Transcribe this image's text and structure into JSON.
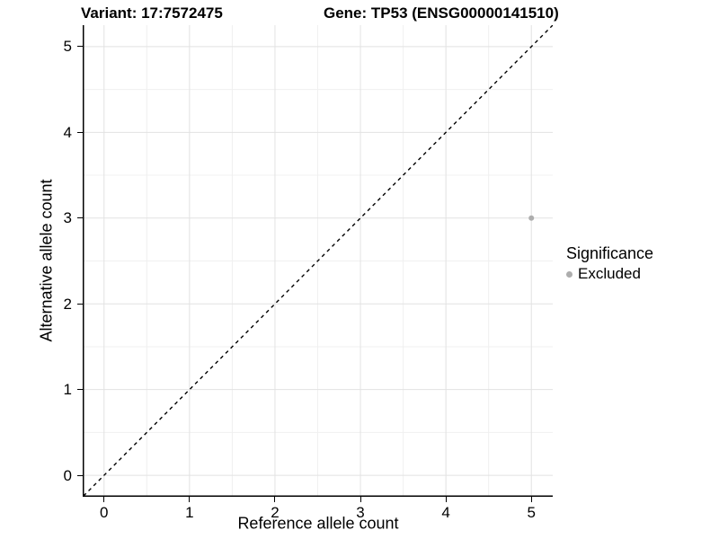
{
  "chart_data": {
    "type": "scatter",
    "titles": {
      "left": "Variant: 17:7572475",
      "right": "Gene: TP53 (ENSG00000141510)"
    },
    "xlabel": "Reference allele count",
    "ylabel": "Alternative allele count",
    "xlim": [
      -0.25,
      5.25
    ],
    "ylim": [
      -0.25,
      5.25
    ],
    "x_ticks": [
      0,
      1,
      2,
      3,
      4,
      5
    ],
    "y_ticks": [
      0,
      1,
      2,
      3,
      4,
      5
    ],
    "x_minor_ticks": [
      0.5,
      1.5,
      2.5,
      3.5,
      4.5
    ],
    "y_minor_ticks": [
      0.5,
      1.5,
      2.5,
      3.5,
      4.5
    ],
    "grid": {
      "on": true,
      "major_color": "#E2E2E2",
      "minor_color": "#F0F0F0"
    },
    "axis_color": "#000000",
    "identity_line": {
      "style": "dashed",
      "color": "#000000",
      "x1": -0.3,
      "y1": -0.3,
      "x2": 5.6,
      "y2": 5.6
    },
    "series": [
      {
        "name": "Excluded",
        "color": "#ADADAD",
        "point_radius": 3,
        "points": [
          {
            "x": 5,
            "y": 3
          }
        ]
      }
    ],
    "legend": {
      "title": "Significance",
      "position": "right",
      "items": [
        {
          "label": "Excluded",
          "color": "#ADADAD",
          "marker": "circle"
        }
      ]
    }
  }
}
